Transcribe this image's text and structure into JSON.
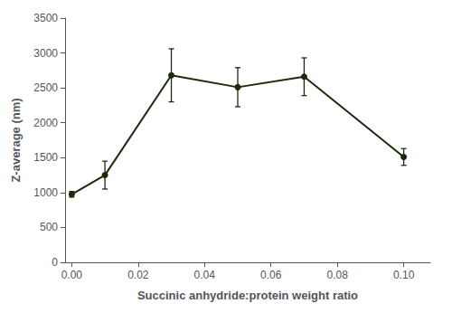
{
  "chart_data": {
    "type": "line",
    "xlabel": "Succinic anhydride:protein weight ratio",
    "ylabel": "Z-average (nm)",
    "x": [
      0.0,
      0.01,
      0.03,
      0.05,
      0.07,
      0.1
    ],
    "values": [
      975,
      1250,
      2680,
      2510,
      2660,
      1510
    ],
    "yerr": [
      40,
      200,
      380,
      280,
      270,
      120
    ],
    "color": "#1a2a0a",
    "marker": "circle",
    "line_style": "solid",
    "xlim": [
      -0.002,
      0.108
    ],
    "ylim": [
      0,
      3500
    ],
    "xticks": [
      {
        "value": 0.0,
        "label": "0.00"
      },
      {
        "value": 0.02,
        "label": "0.02"
      },
      {
        "value": 0.04,
        "label": "0.04"
      },
      {
        "value": 0.06,
        "label": "0.06"
      },
      {
        "value": 0.08,
        "label": "0.08"
      },
      {
        "value": 0.1,
        "label": "0.10"
      }
    ],
    "yticks": [
      0,
      500,
      1000,
      1500,
      2000,
      2500,
      3000,
      3500
    ],
    "grid": false
  }
}
